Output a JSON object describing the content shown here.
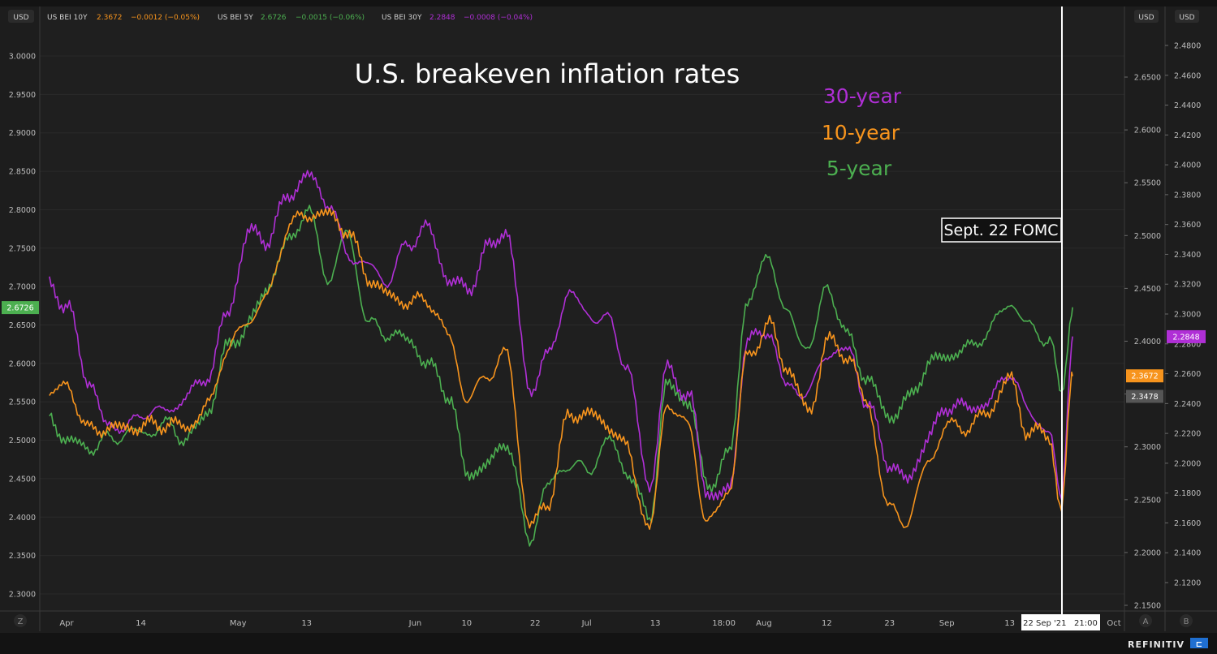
{
  "header": {
    "currency_left": "USD",
    "currency_right_inner": "USD",
    "currency_right_outer": "USD",
    "legend": [
      {
        "label": "US BEI 10Y",
        "value": "2.3672",
        "change": "−0.0012 (−0.05%)",
        "color": "#f7941d"
      },
      {
        "label": "US BEI 5Y",
        "value": "2.6726",
        "change": "−0.0015 (−0.06%)",
        "color": "#4caf50"
      },
      {
        "label": "US BEI 30Y",
        "value": "2.2848",
        "change": "−0.0008 (−0.04%)",
        "color": "#b02fd6"
      }
    ]
  },
  "footer": {
    "left_button": "Z",
    "auto_button": "A",
    "log_button": "B",
    "brand": "REFINITIV",
    "cursor_time": "22 Sep '21   21:00"
  },
  "chart_data": {
    "type": "line",
    "title": "U.S. breakeven inflation rates",
    "annotation": "Sept. 22 FOMC",
    "series_labels": [
      "30-year",
      "10-year",
      "5-year"
    ],
    "x_ticks": [
      "Apr",
      "14",
      "May",
      "13",
      "Jun",
      "10",
      "22",
      "Jul",
      "13",
      "18:00",
      "Aug",
      "12",
      "23",
      "Sep",
      "13",
      "Oct"
    ],
    "x_range": [
      "2021-03-29",
      "2021-10-01"
    ],
    "axes": {
      "left": {
        "ylim": [
          2.28,
          3.04
        ],
        "ticks": [
          "3.0000",
          "2.9500",
          "2.9000",
          "2.8500",
          "2.8000",
          "2.7500",
          "2.7000",
          "2.6500",
          "2.6000",
          "2.5500",
          "2.5000",
          "2.4500",
          "2.4000",
          "2.3500",
          "2.3000"
        ]
      },
      "mid": {
        "ylim": [
          2.146,
          2.676
        ],
        "ticks": [
          "2.6500",
          "2.6000",
          "2.5500",
          "2.5000",
          "2.4500",
          "2.4000",
          "2.3500",
          "2.3000",
          "2.2500",
          "2.2000",
          "2.1500"
        ]
      },
      "right": {
        "ylim": [
          2.105,
          2.495
        ],
        "ticks": [
          "2.4800",
          "2.4600",
          "2.4400",
          "2.4200",
          "2.4000",
          "2.3800",
          "2.3600",
          "2.3400",
          "2.3200",
          "2.3000",
          "2.2800",
          "2.2600",
          "2.2400",
          "2.2200",
          "2.2000",
          "2.1800",
          "2.1600",
          "2.1400",
          "2.1200"
        ]
      }
    },
    "price_tags": [
      {
        "axis": "left",
        "value": "2.6726",
        "color": "#4caf50"
      },
      {
        "axis": "right",
        "value": "2.2848",
        "color": "#b02fd6"
      },
      {
        "axis": "mid",
        "value": "2.3672",
        "color": "#f7941d"
      },
      {
        "axis": "mid",
        "value": "2.3478",
        "color": "#555555"
      }
    ],
    "series": [
      {
        "name": "30-year",
        "axis": "right",
        "color": "#b02fd6",
        "x": [
          "03-29",
          "04-01",
          "04-05",
          "04-08",
          "04-12",
          "04-15",
          "04-19",
          "04-22",
          "04-26",
          "04-29",
          "05-03",
          "05-06",
          "05-10",
          "05-13",
          "05-17",
          "05-20",
          "05-24",
          "05-27",
          "05-31",
          "06-03",
          "06-07",
          "06-10",
          "06-14",
          "06-17",
          "06-21",
          "06-24",
          "06-28",
          "07-01",
          "07-05",
          "07-08",
          "07-12",
          "07-15",
          "07-19",
          "07-22",
          "07-26",
          "07-29",
          "08-02",
          "08-05",
          "08-09",
          "08-12",
          "08-16",
          "08-19",
          "08-23",
          "08-26",
          "08-30",
          "09-02",
          "09-06",
          "09-09",
          "09-13",
          "09-16",
          "09-20",
          "09-22",
          "09-24"
        ],
        "y": [
          2.32,
          2.305,
          2.255,
          2.225,
          2.225,
          2.235,
          2.235,
          2.245,
          2.26,
          2.3,
          2.355,
          2.35,
          2.38,
          2.393,
          2.375,
          2.34,
          2.332,
          2.322,
          2.348,
          2.358,
          2.323,
          2.316,
          2.345,
          2.356,
          2.25,
          2.27,
          2.315,
          2.3,
          2.295,
          2.265,
          2.184,
          2.262,
          2.245,
          2.18,
          2.18,
          2.282,
          2.288,
          2.25,
          2.248,
          2.274,
          2.275,
          2.24,
          2.2,
          2.188,
          2.218,
          2.239,
          2.237,
          2.24,
          2.262,
          2.236,
          2.22,
          2.175,
          2.285
        ]
      },
      {
        "name": "10-year",
        "axis": "mid",
        "color": "#f7941d",
        "x": [
          "03-29",
          "04-01",
          "04-05",
          "04-08",
          "04-12",
          "04-15",
          "04-19",
          "04-22",
          "04-26",
          "04-29",
          "05-03",
          "05-06",
          "05-10",
          "05-13",
          "05-17",
          "05-20",
          "05-24",
          "05-27",
          "05-31",
          "06-03",
          "06-07",
          "06-10",
          "06-14",
          "06-17",
          "06-21",
          "06-24",
          "06-28",
          "07-01",
          "07-05",
          "07-08",
          "07-12",
          "07-15",
          "07-19",
          "07-22",
          "07-26",
          "07-29",
          "08-02",
          "08-05",
          "08-09",
          "08-12",
          "08-16",
          "08-19",
          "08-23",
          "08-26",
          "08-30",
          "09-02",
          "09-06",
          "09-09",
          "09-13",
          "09-16",
          "09-20",
          "09-22",
          "09-24"
        ],
        "y": [
          2.35,
          2.358,
          2.315,
          2.318,
          2.318,
          2.32,
          2.322,
          2.318,
          2.34,
          2.393,
          2.42,
          2.442,
          2.51,
          2.52,
          2.52,
          2.505,
          2.46,
          2.444,
          2.436,
          2.44,
          2.404,
          2.344,
          2.37,
          2.388,
          2.225,
          2.245,
          2.33,
          2.332,
          2.32,
          2.298,
          2.22,
          2.341,
          2.318,
          2.226,
          2.26,
          2.385,
          2.415,
          2.375,
          2.332,
          2.4,
          2.385,
          2.34,
          2.24,
          2.23,
          2.288,
          2.32,
          2.319,
          2.332,
          2.365,
          2.316,
          2.31,
          2.24,
          2.367
        ]
      },
      {
        "name": "5-year",
        "axis": "left",
        "color": "#4caf50",
        "x": [
          "03-29",
          "04-01",
          "04-05",
          "04-08",
          "04-12",
          "04-15",
          "04-19",
          "04-22",
          "04-26",
          "04-29",
          "05-03",
          "05-06",
          "05-10",
          "05-13",
          "05-17",
          "05-20",
          "05-24",
          "05-27",
          "05-31",
          "06-03",
          "06-07",
          "06-10",
          "06-14",
          "06-17",
          "06-21",
          "06-24",
          "06-28",
          "07-01",
          "07-05",
          "07-08",
          "07-12",
          "07-15",
          "07-19",
          "07-22",
          "07-26",
          "07-29",
          "08-02",
          "08-05",
          "08-09",
          "08-12",
          "08-16",
          "08-19",
          "08-23",
          "08-26",
          "08-30",
          "09-02",
          "09-06",
          "09-09",
          "09-13",
          "09-16",
          "09-20",
          "09-22",
          "09-24"
        ],
        "y": [
          2.53,
          2.5,
          2.49,
          2.5,
          2.51,
          2.51,
          2.52,
          2.5,
          2.54,
          2.62,
          2.65,
          2.7,
          2.76,
          2.8,
          2.71,
          2.77,
          2.65,
          2.64,
          2.63,
          2.6,
          2.56,
          2.455,
          2.47,
          2.5,
          2.37,
          2.44,
          2.47,
          2.46,
          2.5,
          2.46,
          2.4,
          2.57,
          2.55,
          2.44,
          2.48,
          2.68,
          2.74,
          2.66,
          2.62,
          2.7,
          2.63,
          2.58,
          2.53,
          2.55,
          2.6,
          2.61,
          2.62,
          2.64,
          2.68,
          2.65,
          2.63,
          2.56,
          2.673
        ]
      }
    ]
  }
}
